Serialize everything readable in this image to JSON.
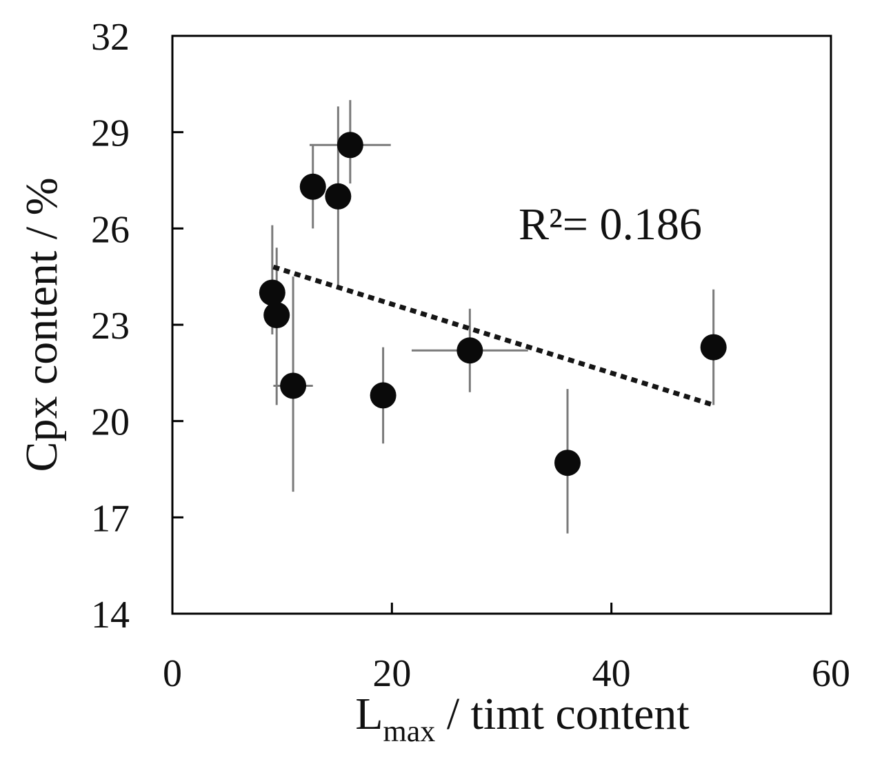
{
  "chart_data": {
    "type": "scatter",
    "xlabel_main": "L",
    "xlabel_sub": "max",
    "xlabel_rest": " / timt content",
    "ylabel": "Cpx content / %",
    "xlim": [
      0,
      60
    ],
    "ylim": [
      14,
      32
    ],
    "xticks": [
      0,
      20,
      40,
      60
    ],
    "yticks": [
      14,
      17,
      20,
      23,
      26,
      29,
      32
    ],
    "grid": false,
    "legend": "none",
    "annotation": "R²= 0.186",
    "colors": {
      "marker": "#0a0a0a",
      "errorbar": "#7a7a7a",
      "trendline": "#151515",
      "axis": "#000000"
    },
    "points": [
      {
        "x": 9.1,
        "y": 24.0,
        "xerr": [
          0.5,
          0.5
        ],
        "yerr": [
          1.3,
          2.1
        ]
      },
      {
        "x": 9.5,
        "y": 23.3,
        "xerr": [
          0.5,
          0.5
        ],
        "yerr": [
          2.8,
          2.1
        ]
      },
      {
        "x": 11.0,
        "y": 21.1,
        "xerr": [
          1.8,
          1.8
        ],
        "yerr": [
          3.3,
          3.4
        ]
      },
      {
        "x": 12.8,
        "y": 27.3,
        "xerr": [
          0.5,
          0.5
        ],
        "yerr": [
          1.3,
          1.3
        ]
      },
      {
        "x": 15.1,
        "y": 27.0,
        "xerr": [
          0.5,
          0.5
        ],
        "yerr": [
          2.8,
          2.8
        ]
      },
      {
        "x": 16.2,
        "y": 28.6,
        "xerr": [
          3.7,
          3.7
        ],
        "yerr": [
          1.2,
          1.4
        ]
      },
      {
        "x": 19.2,
        "y": 20.8,
        "xerr": [
          0.5,
          0.5
        ],
        "yerr": [
          1.5,
          1.5
        ]
      },
      {
        "x": 27.1,
        "y": 22.2,
        "xerr": [
          5.3,
          5.3
        ],
        "yerr": [
          1.3,
          1.3
        ]
      },
      {
        "x": 36.0,
        "y": 18.7,
        "xerr": [
          0.5,
          0.5
        ],
        "yerr": [
          2.2,
          2.3
        ]
      },
      {
        "x": 49.3,
        "y": 22.3,
        "xerr": [
          0.5,
          0.5
        ],
        "yerr": [
          1.8,
          1.8
        ]
      }
    ],
    "trendline": {
      "x": [
        9.2,
        49.3
      ],
      "y": [
        24.8,
        20.5
      ]
    }
  }
}
